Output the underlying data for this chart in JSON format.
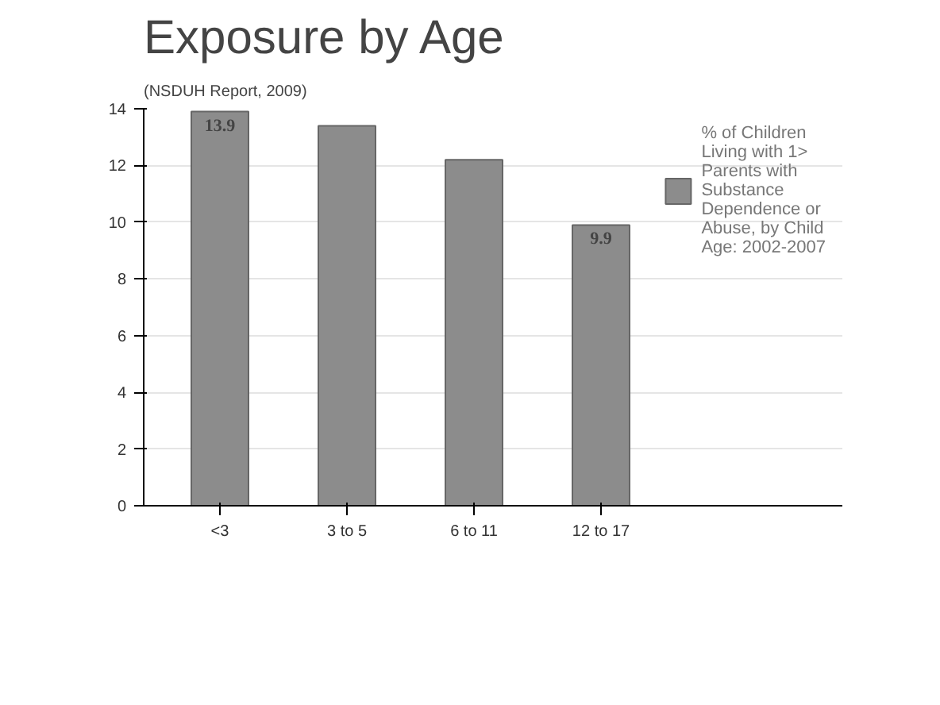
{
  "chart_data": {
    "type": "bar",
    "title": "Exposure by Age",
    "subtitle": "(NSDUH Report, 2009)",
    "categories": [
      "<3",
      "3 to 5",
      "6 to 11",
      "12 to 17"
    ],
    "series": [
      {
        "name": "% of Children Living with 1> Parents with Substance Dependence or Abuse, by Child Age: 2002-2007",
        "color": "#8c8c8c",
        "values": [
          13.9,
          13.4,
          12.2,
          9.9
        ],
        "value_labels": [
          "13.9",
          null,
          null,
          "9.9"
        ]
      }
    ],
    "ylim": [
      0,
      14
    ],
    "yticks": [
      0,
      2,
      4,
      6,
      8,
      10,
      12,
      14
    ],
    "grid": "y",
    "legend": "right"
  }
}
